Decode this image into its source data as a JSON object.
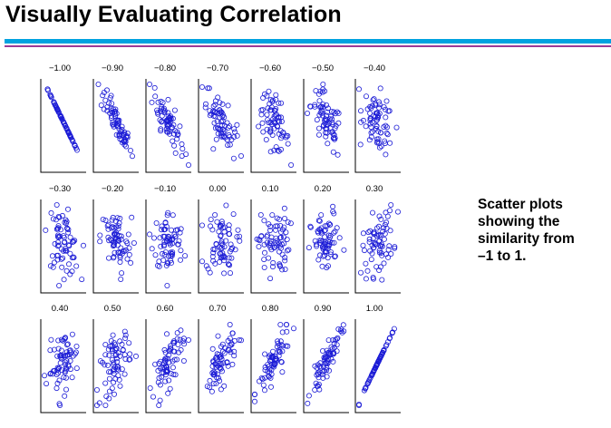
{
  "title": "Visually Evaluating Correlation",
  "colors": {
    "accent_rule": "#00a2e0",
    "accent_rule_secondary": "#9b3a97",
    "marker": "#1c1cd6",
    "axis": "#000000"
  },
  "caption": {
    "line1": "Scatter plots",
    "line2": "showing the",
    "line3": "similarity from",
    "line4": "–1 to 1."
  },
  "chart_data": {
    "type": "scatter",
    "title": "Visually Evaluating Correlation",
    "panels": [
      {
        "label": "−1.00",
        "r": -1.0
      },
      {
        "label": "−0.90",
        "r": -0.9
      },
      {
        "label": "−0.80",
        "r": -0.8
      },
      {
        "label": "−0.70",
        "r": -0.7
      },
      {
        "label": "−0.60",
        "r": -0.6
      },
      {
        "label": "−0.50",
        "r": -0.5
      },
      {
        "label": "−0.40",
        "r": -0.4
      },
      {
        "label": "−0.30",
        "r": -0.3
      },
      {
        "label": "−0.20",
        "r": -0.2
      },
      {
        "label": "−0.10",
        "r": -0.1
      },
      {
        "label": "0.00",
        "r": 0.0
      },
      {
        "label": "0.10",
        "r": 0.1
      },
      {
        "label": "0.20",
        "r": 0.2
      },
      {
        "label": "0.30",
        "r": 0.3
      },
      {
        "label": "0.40",
        "r": 0.4
      },
      {
        "label": "0.50",
        "r": 0.5
      },
      {
        "label": "0.60",
        "r": 0.6
      },
      {
        "label": "0.70",
        "r": 0.7
      },
      {
        "label": "0.80",
        "r": 0.8
      },
      {
        "label": "0.90",
        "r": 0.9
      },
      {
        "label": "1.00",
        "r": 1.0
      }
    ],
    "points_per_panel": 70,
    "marker": "open-circle"
  }
}
